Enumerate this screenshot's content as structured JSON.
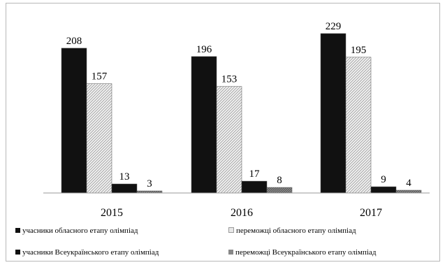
{
  "chart_data": {
    "type": "bar",
    "categories": [
      "2015",
      "2016",
      "2017"
    ],
    "series": [
      {
        "name": "учасники обласного етапу олімпіад",
        "values": [
          208,
          196,
          229
        ],
        "fill": "#111111"
      },
      {
        "name": "переможці обласного етапу олімпіад",
        "values": [
          157,
          153,
          195
        ],
        "fill": "hatch-light"
      },
      {
        "name": "учасники Всеукраїнського етапу олімпіад",
        "values": [
          13,
          17,
          9
        ],
        "fill": "#111111"
      },
      {
        "name": "переможці Всеукраїнського етапу олімпіад",
        "values": [
          3,
          8,
          4
        ],
        "fill": "hatch-dark"
      }
    ],
    "title": "",
    "xlabel": "",
    "ylabel": "",
    "ylim": [
      0,
      235
    ],
    "grid": false,
    "legend_position": "bottom"
  }
}
